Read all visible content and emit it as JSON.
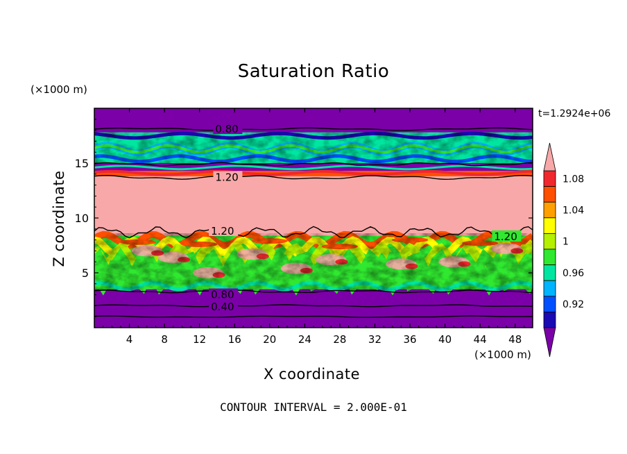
{
  "chart_data": {
    "type": "heatmap",
    "title": "Saturation Ratio",
    "xlabel": "X coordinate",
    "ylabel": "Z coordinate",
    "x_unit": "(×1000 m)",
    "y_unit": "(×1000 m)",
    "time_label": "t=1.2924e+06",
    "footer": "CONTOUR INTERVAL = 2.000E-01",
    "xlim": [
      0,
      50
    ],
    "ylim": [
      0,
      20
    ],
    "xticks": [
      "4",
      "8",
      "12",
      "16",
      "20",
      "24",
      "28",
      "32",
      "36",
      "40",
      "44",
      "48"
    ],
    "yticks": [
      "5",
      "10",
      "15"
    ],
    "colorbar": {
      "levels": [
        0.9,
        0.92,
        0.94,
        0.96,
        0.98,
        1.0,
        1.02,
        1.04,
        1.06,
        1.08,
        1.1
      ],
      "labels": [
        "0.92",
        "0.96",
        "1",
        "1.04",
        "1.08"
      ],
      "colors": [
        "#7b00a8",
        "#1a0ab4",
        "#0050ff",
        "#00b4ff",
        "#00e6a0",
        "#30e830",
        "#b4f000",
        "#ffff00",
        "#ffa000",
        "#ff5000",
        "#f0282d",
        "#f8a8a8"
      ]
    },
    "contour_labels": [
      "0.80",
      "1.20",
      "1.20",
      "1.20",
      "0.80",
      "0.40"
    ],
    "bands": [
      {
        "z0": 17.8,
        "z1": 20.0,
        "value": 0.85
      },
      {
        "z0": 15.0,
        "z1": 17.8,
        "value": 0.97
      },
      {
        "z0": 14.3,
        "z1": 15.0,
        "value": 0.88
      },
      {
        "z0": 13.8,
        "z1": 14.3,
        "value": 1.07
      },
      {
        "z0": 8.4,
        "z1": 13.8,
        "value": 1.15
      },
      {
        "z0": 3.5,
        "z1": 8.4,
        "value": 0.99
      },
      {
        "z0": 0.0,
        "z1": 3.5,
        "value": 0.8
      }
    ]
  }
}
